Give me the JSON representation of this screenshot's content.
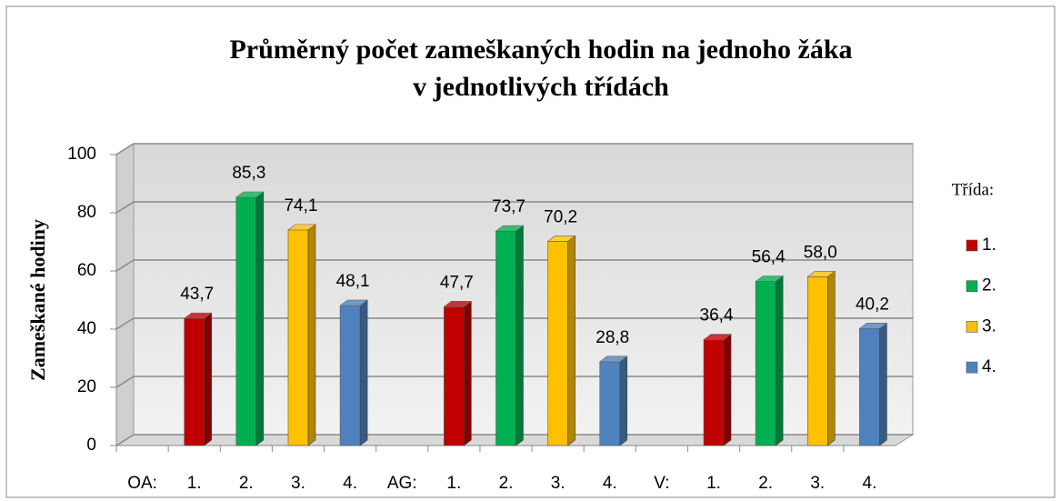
{
  "chart_data": {
    "type": "bar",
    "title": [
      "Průměrný počet zameškaných  hodin na jednoho žáka",
      "v jednotlivých třídách"
    ],
    "y_label": "Zameškané hodiny",
    "legend_title": "Třída:",
    "legend": "right",
    "grid": true,
    "categories": [
      "OA:",
      "1.",
      "2.",
      "3.",
      "4.",
      "AG:",
      "1.",
      "2.",
      "3.",
      "4.",
      "V:",
      "1.",
      "2.",
      "3.",
      "4."
    ],
    "ylim": [
      0,
      100
    ],
    "yticks": [
      0,
      20,
      40,
      60,
      80,
      100
    ],
    "series": [
      {
        "name": "1.",
        "color": "#c00000",
        "values": [
          null,
          43.7,
          null,
          null,
          null,
          null,
          47.7,
          null,
          null,
          null,
          null,
          36.4,
          null,
          null,
          null
        ],
        "value_labels": [
          null,
          "43,7",
          null,
          null,
          null,
          null,
          "47,7",
          null,
          null,
          null,
          null,
          "36,4",
          null,
          null,
          null
        ]
      },
      {
        "name": "2.",
        "color": "#00b050",
        "values": [
          null,
          null,
          85.3,
          null,
          null,
          null,
          null,
          73.7,
          null,
          null,
          null,
          null,
          56.4,
          null,
          null
        ],
        "value_labels": [
          null,
          null,
          "85,3",
          null,
          null,
          null,
          null,
          "73,7",
          null,
          null,
          null,
          null,
          "56,4",
          null,
          null
        ]
      },
      {
        "name": "3.",
        "color": "#ffc000",
        "values": [
          null,
          null,
          null,
          74.1,
          null,
          null,
          null,
          null,
          70.2,
          null,
          null,
          null,
          null,
          58.0,
          null
        ],
        "value_labels": [
          null,
          null,
          null,
          "74,1",
          null,
          null,
          null,
          null,
          "70,2",
          null,
          null,
          null,
          null,
          "58,0",
          null
        ]
      },
      {
        "name": "4.",
        "color": "#4f81bd",
        "values": [
          null,
          null,
          null,
          null,
          48.1,
          null,
          null,
          null,
          null,
          28.8,
          null,
          null,
          null,
          null,
          40.2
        ],
        "value_labels": [
          null,
          null,
          null,
          null,
          "48,1",
          null,
          null,
          null,
          null,
          "28,8",
          null,
          null,
          null,
          null,
          "40,2"
        ]
      }
    ]
  }
}
